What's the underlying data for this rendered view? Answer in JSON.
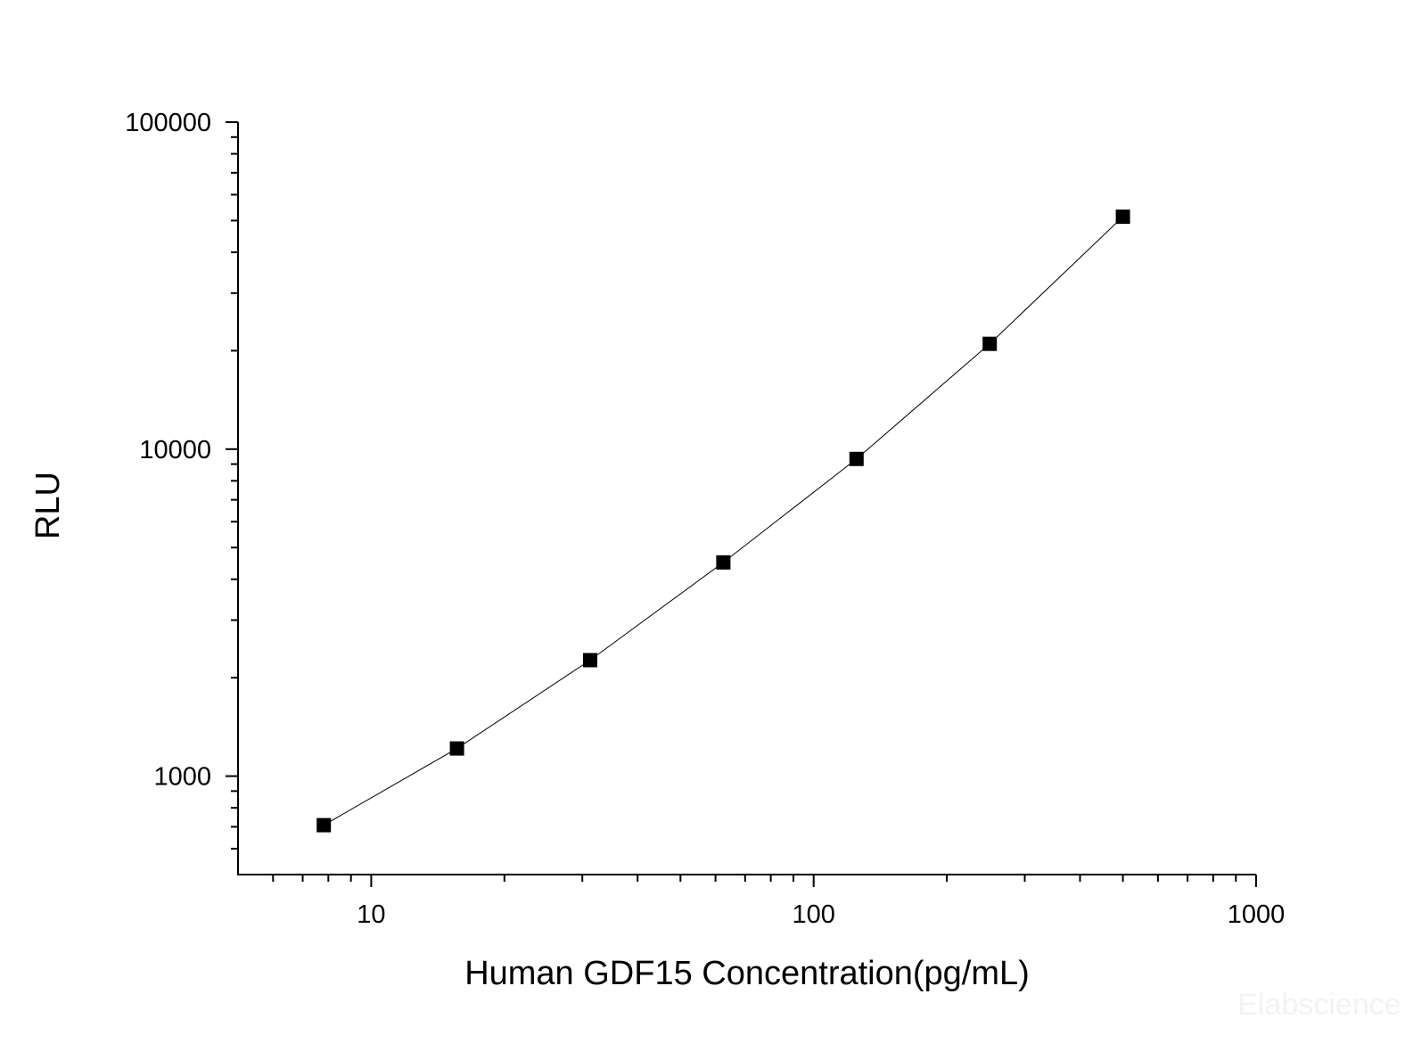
{
  "chart_data": {
    "type": "line",
    "x_label": "Human GDF15 Concentration(pg/mL)",
    "y_label": "RLU",
    "watermark": "Elabscience",
    "xscale": "log",
    "yscale": "log",
    "markers": true,
    "x": [
      7.8125,
      15.625,
      31.25,
      62.5,
      125,
      250,
      500
    ],
    "series": [
      {
        "color": "#000000",
        "values": [
          708,
          1215,
          2263,
          4504,
          9333,
          20990,
          51370
        ]
      }
    ],
    "xlim": [
      5,
      1000
    ],
    "ylim": [
      500,
      100000
    ],
    "xticks": [
      10,
      100,
      1000
    ],
    "yticks": [
      1000,
      10000,
      100000
    ],
    "xminorticks": [
      6,
      7,
      8,
      9,
      20,
      30,
      40,
      50,
      60,
      70,
      80,
      90,
      200,
      300,
      400,
      500,
      600,
      700,
      800,
      900
    ],
    "yminorticks": [
      600,
      700,
      800,
      900,
      2000,
      3000,
      4000,
      5000,
      6000,
      7000,
      8000,
      9000,
      20000,
      30000,
      40000,
      50000,
      60000,
      70000,
      80000,
      90000
    ]
  }
}
